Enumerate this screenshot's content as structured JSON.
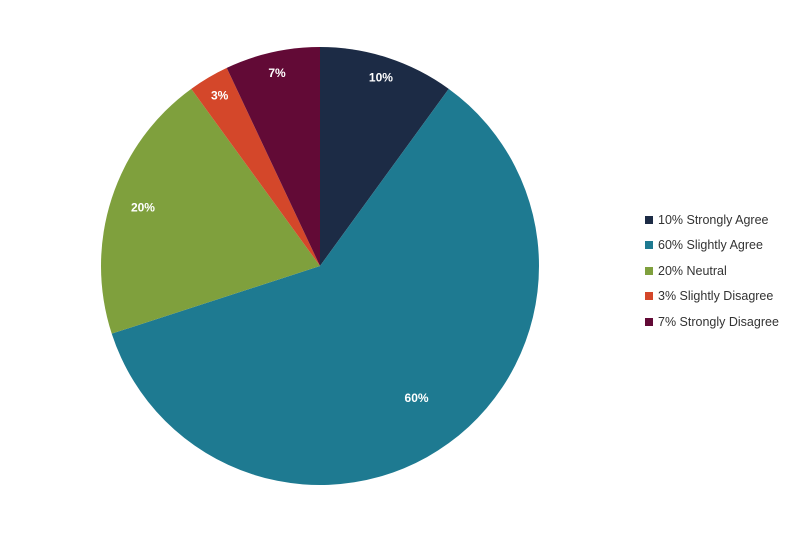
{
  "chart_data": {
    "type": "pie",
    "title": "",
    "legend_position": "right",
    "slices": [
      {
        "label": "10% Strongly Agree",
        "value": 10,
        "data_label": "10%",
        "color": "#1c2b45"
      },
      {
        "label": "60% Slightly Agree",
        "value": 60,
        "data_label": "60%",
        "color": "#1e7a91"
      },
      {
        "label": "20% Neutral",
        "value": 20,
        "data_label": "20%",
        "color": "#7fa03d"
      },
      {
        "label": "3% Slightly Disagree",
        "value": 3,
        "data_label": "3%",
        "color": "#d4472a"
      },
      {
        "label": "7% Strongly Disagree",
        "value": 7,
        "data_label": "7%",
        "color": "#620a36"
      }
    ]
  }
}
